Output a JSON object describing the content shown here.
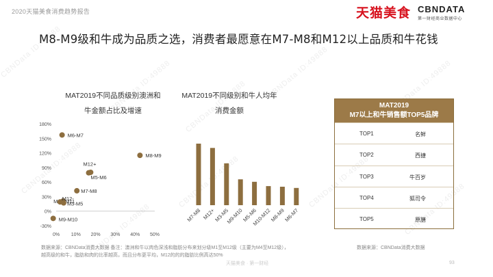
{
  "header": {
    "report_tag": "2020天猫美食消费趋势报告",
    "brand_tmall": "天猫美食",
    "brand_cbn": "CBNDATA",
    "brand_cbn_sub": "第一财经商业数据中心"
  },
  "headline": "M8-M9级和牛成为品质之选，消费者最愿意在M7-M8和M12以上品质和牛花钱",
  "watermark_text": "CBNData ID:49888",
  "panels": {
    "scatter_title_line1": "MAT2019不同品质级别澳洲和",
    "scatter_title_line2": "牛金额占比及增速",
    "bar_title_line1": "MAT2019不同级别和牛人均年",
    "bar_title_line2": "消费金额"
  },
  "chart_data": [
    {
      "type": "scatter",
      "title": "MAT2019不同品质级别澳洲和牛金额占比及增速",
      "xlim": [
        0,
        50
      ],
      "ylim": [
        -30,
        180
      ],
      "x_ticks": [
        "0%",
        "10%",
        "20%",
        "30%",
        "40%",
        "50%"
      ],
      "y_ticks": [
        "180%",
        "150%",
        "120%",
        "90%",
        "60%",
        "30%",
        "0%",
        "-30%"
      ],
      "points": [
        {
          "label": "M6-M7",
          "x": 3.0,
          "y": 157
        },
        {
          "label": "M8-M9",
          "x": 42.5,
          "y": 115
        },
        {
          "label": "M12+",
          "x": 16.5,
          "y": 79
        },
        {
          "label": "M5-M6",
          "x": 17.5,
          "y": 80
        },
        {
          "label": "M10-M11",
          "x": 3.5,
          "y": 21
        },
        {
          "label": "M7-M8",
          "x": 10.5,
          "y": 42
        },
        {
          "label": "M12-",
          "x": 2.0,
          "y": 19
        },
        {
          "label": "M3-M5",
          "x": 3.8,
          "y": 17
        },
        {
          "label": "M9-M10",
          "x": -1.5,
          "y": -15
        }
      ]
    },
    {
      "type": "bar",
      "title": "MAT2019不同级别和牛人均年消费金额",
      "categories": [
        "M7-M8",
        "M12+",
        "M3-M5",
        "M9-M10",
        "M5-M6",
        "M10-M12",
        "M8-M9",
        "M6-M7"
      ],
      "values": [
        100,
        93,
        68,
        42,
        38,
        31,
        30,
        28
      ]
    }
  ],
  "top5": {
    "title_line1": "MAT2019",
    "title_line2": "M7以上和牛销售额TOP5品牌",
    "rows": [
      {
        "rank": "TOP1",
        "brand": "名鲜"
      },
      {
        "rank": "TOP2",
        "brand": "西捷"
      },
      {
        "rank": "TOP3",
        "brand": "牛百岁"
      },
      {
        "rank": "TOP4",
        "brand": "狐司令"
      },
      {
        "rank": "TOP5",
        "brand": "原膳"
      }
    ]
  },
  "footer": {
    "source_left_line1": "数据来源：CBNData消费大数据     备注：澳洲和牛以肉色深浅和脂肪分布来划分级M1至M12级（主要为M4至M12级），",
    "source_left_line2": "越高级的和牛，脂肪和肉的比率越高，而且分布更平均，M12的的的脂肪比例高达50%",
    "source_right": "数据来源：CBNData消费大数据",
    "footer_mark": "天猫美食 · 第一财经",
    "page_num": "93"
  },
  "colors": {
    "accent_brown": "#8d6e3f",
    "table_header": "#9c7a48",
    "brand_red": "#d7121e"
  }
}
